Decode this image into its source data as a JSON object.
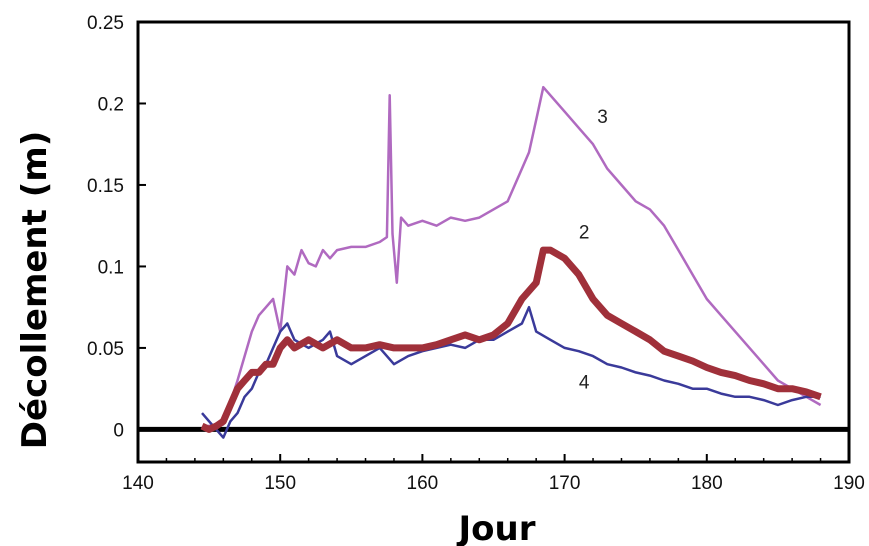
{
  "chart_data": {
    "type": "line",
    "title": "",
    "xlabel": "Jour",
    "ylabel": "Décollement (m)",
    "xlim": [
      140,
      190
    ],
    "ylim": [
      -0.02,
      0.25
    ],
    "xticks": [
      "140",
      "150",
      "160",
      "170",
      "180",
      "190"
    ],
    "yticks": [
      "0",
      "0.05",
      "0.1",
      "0.15",
      "0.2",
      "0.25"
    ],
    "grid": false,
    "legend": "none",
    "series": [
      {
        "name": "3",
        "color": "#b06ac0",
        "x": [
          144.8,
          146,
          147,
          148,
          148.5,
          149,
          149.5,
          150,
          150.5,
          151,
          151.5,
          152,
          152.5,
          153,
          153.5,
          154,
          155,
          156,
          157,
          157.5,
          157.7,
          157.9,
          158.2,
          158.5,
          159,
          160,
          161,
          162,
          163,
          164,
          165,
          166,
          166.5,
          167,
          167.5,
          168,
          168.5,
          169,
          170,
          171,
          172,
          173,
          174,
          175,
          176,
          177,
          178,
          179,
          180,
          181,
          182,
          183,
          184,
          185,
          186,
          187,
          188
        ],
        "y": [
          0.002,
          0.003,
          0.03,
          0.06,
          0.07,
          0.075,
          0.08,
          0.06,
          0.1,
          0.095,
          0.11,
          0.102,
          0.1,
          0.11,
          0.105,
          0.11,
          0.112,
          0.112,
          0.115,
          0.118,
          0.205,
          0.12,
          0.09,
          0.13,
          0.125,
          0.128,
          0.125,
          0.13,
          0.128,
          0.13,
          0.135,
          0.14,
          0.15,
          0.16,
          0.17,
          0.19,
          0.21,
          0.205,
          0.195,
          0.185,
          0.175,
          0.16,
          0.15,
          0.14,
          0.135,
          0.125,
          0.11,
          0.095,
          0.08,
          0.07,
          0.06,
          0.05,
          0.04,
          0.03,
          0.025,
          0.02,
          0.015
        ]
      },
      {
        "name": "2",
        "color": "#a0303a",
        "x": [
          144.5,
          145,
          145.5,
          146,
          146.5,
          147,
          147.5,
          148,
          148.5,
          149,
          149.5,
          150,
          150.5,
          151,
          152,
          153,
          154,
          155,
          156,
          157,
          158,
          159,
          160,
          161,
          162,
          163,
          164,
          165,
          166,
          167,
          168,
          168.5,
          169,
          170,
          171,
          172,
          173,
          174,
          175,
          176,
          177,
          178,
          179,
          180,
          181,
          182,
          183,
          184,
          185,
          186,
          187,
          188
        ],
        "y": [
          0.002,
          0,
          0.002,
          0.005,
          0.015,
          0.025,
          0.03,
          0.035,
          0.035,
          0.04,
          0.04,
          0.05,
          0.055,
          0.05,
          0.055,
          0.05,
          0.055,
          0.05,
          0.05,
          0.052,
          0.05,
          0.05,
          0.05,
          0.052,
          0.055,
          0.058,
          0.055,
          0.058,
          0.065,
          0.08,
          0.09,
          0.11,
          0.11,
          0.105,
          0.095,
          0.08,
          0.07,
          0.065,
          0.06,
          0.055,
          0.048,
          0.045,
          0.042,
          0.038,
          0.035,
          0.033,
          0.03,
          0.028,
          0.025,
          0.025,
          0.023,
          0.02
        ]
      },
      {
        "name": "4",
        "color": "#3a3a9a",
        "x": [
          144.5,
          145,
          146,
          146.5,
          147,
          147.5,
          148,
          148.5,
          149,
          149.5,
          150,
          150.5,
          151,
          152,
          153,
          153.5,
          154,
          155,
          156,
          157,
          158,
          159,
          160,
          161,
          162,
          163,
          164,
          165,
          166,
          167,
          167.5,
          168,
          169,
          170,
          171,
          172,
          173,
          174,
          175,
          176,
          177,
          178,
          179,
          180,
          181,
          182,
          183,
          184,
          185,
          186,
          187,
          188
        ],
        "y": [
          0.01,
          0.005,
          -0.005,
          0.005,
          0.01,
          0.02,
          0.025,
          0.035,
          0.04,
          0.05,
          0.06,
          0.065,
          0.055,
          0.05,
          0.055,
          0.06,
          0.045,
          0.04,
          0.045,
          0.05,
          0.04,
          0.045,
          0.048,
          0.05,
          0.052,
          0.05,
          0.055,
          0.055,
          0.06,
          0.065,
          0.075,
          0.06,
          0.055,
          0.05,
          0.048,
          0.045,
          0.04,
          0.038,
          0.035,
          0.033,
          0.03,
          0.028,
          0.025,
          0.025,
          0.022,
          0.02,
          0.02,
          0.018,
          0.015,
          0.018,
          0.02,
          0.02
        ]
      }
    ]
  }
}
